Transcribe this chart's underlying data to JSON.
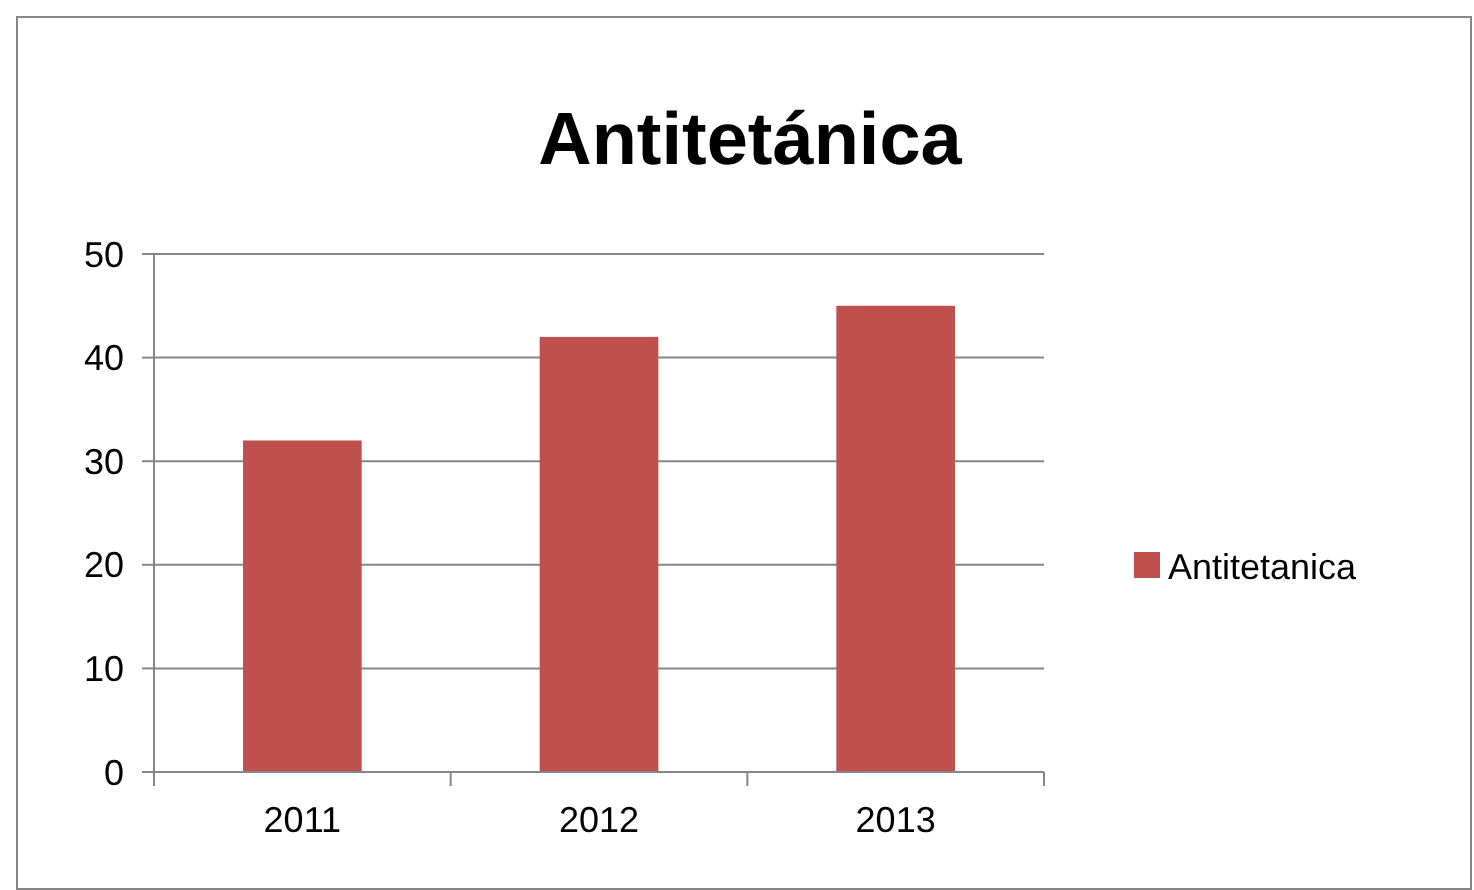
{
  "chart_data": {
    "type": "bar",
    "title": "Antitetánica",
    "categories": [
      "2011",
      "2012",
      "2013"
    ],
    "series": [
      {
        "name": "Antitetanica",
        "color": "#c0504d",
        "values": [
          32,
          42,
          45
        ]
      }
    ],
    "ylim": [
      0,
      50
    ],
    "yticks": [
      0,
      10,
      20,
      30,
      40,
      50
    ],
    "grid": "y",
    "legend": "right"
  }
}
